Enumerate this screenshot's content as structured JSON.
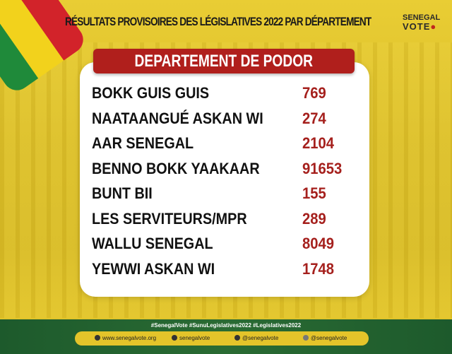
{
  "header": {
    "title": "RÉSULTATS PROVISOIRES DES  LÉGISLATIVES 2022 PAR DÉPARTEMENT",
    "logo_line1": "SENEGAL",
    "logo_line2": "VOTE"
  },
  "department": "DEPARTEMENT DE PODOR",
  "results": [
    {
      "party": "BOKK GUIS GUIS",
      "votes": "769"
    },
    {
      "party": "NAATAANGUÉ ASKAN WI",
      "votes": "274"
    },
    {
      "party": "AAR SENEGAL",
      "votes": "2104"
    },
    {
      "party": "BENNO BOKK YAAKAAR",
      "votes": "91653"
    },
    {
      "party": "BUNT BII",
      "votes": "155"
    },
    {
      "party": "LES SERVITEURS/MPR",
      "votes": "289"
    },
    {
      "party": "WALLU SENEGAL",
      "votes": "8049"
    },
    {
      "party": "YEWWI ASKAN WI",
      "votes": "1748"
    }
  ],
  "footer": {
    "hashtags": "#SenegalVote   #SunuLegislatives2022   #Legislatives2022",
    "website": "www.senegalvote.org",
    "facebook": "senegalvote",
    "twitter": "@senegalvote",
    "instagram": "@senegalvote"
  },
  "colors": {
    "accent_red": "#b01f1c",
    "yellow": "#e3c52a",
    "green": "#1d5a2c"
  }
}
